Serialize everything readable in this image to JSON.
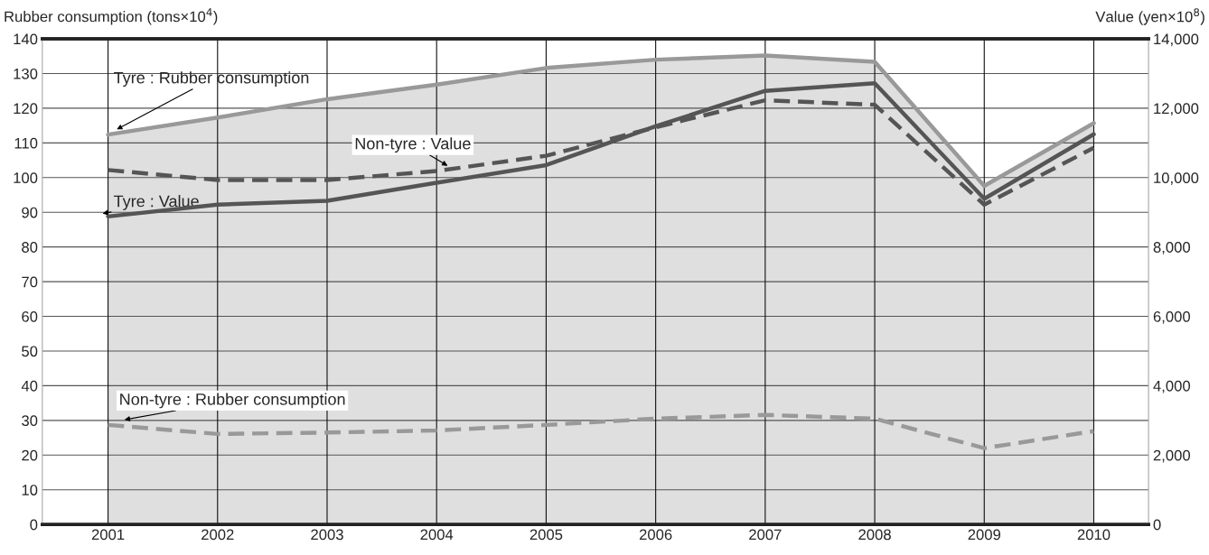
{
  "chart_data": {
    "type": "line",
    "ylabel": "Rubber consumption (tons×10$^{4}$)",
    "y2label": "Value (yen×10$^{8}$)",
    "categories": [
      "2001",
      "2002",
      "2003",
      "2004",
      "2005",
      "2006",
      "2007",
      "2008",
      "2009",
      "2010"
    ],
    "series": [
      {
        "type": "area",
        "color": "#999999",
        "line_style": "solid",
        "values": [
          112.4,
          117.3,
          122.6,
          126.8,
          131.6,
          134.0,
          135.2,
          133.4,
          97.6,
          115.7
        ]
      },
      {
        "color": "#555555",
        "line_style": "solid",
        "axis": "y2",
        "values": [
          8880,
          9220,
          9330,
          9850,
          10360,
          11480,
          12500,
          12720,
          9390,
          11250
        ]
      },
      {
        "color": "#555555",
        "line_style": "dashed",
        "axis": "y2",
        "values": [
          10220,
          9930,
          9930,
          10190,
          10630,
          11450,
          12230,
          12100,
          9220,
          10860
        ]
      },
      {
        "color": "#999999",
        "line_style": "dashed",
        "values": [
          28.7,
          26.1,
          26.5,
          27.1,
          28.7,
          30.5,
          31.6,
          30.5,
          22.0,
          26.9
        ]
      }
    ],
    "annotations": [
      {
        "text": "Tyre : Rubber consumption",
        "x": "2001",
        "y": 112.4
      },
      {
        "text": "Non-tyre : Value",
        "x": "2004",
        "y": 101.9
      },
      {
        "text": "Tyre : Value",
        "x": "2001",
        "y": 88.8
      },
      {
        "text": "Non-tyre : Rubber consumption",
        "x": "2001",
        "y": 28.7
      }
    ],
    "ylim": [
      0,
      140
    ],
    "yticks": [
      0,
      10,
      20,
      30,
      40,
      50,
      60,
      70,
      80,
      90,
      100,
      110,
      120,
      130,
      140
    ],
    "y2lim": [
      0,
      14000
    ],
    "y2ticks": [
      {
        "value": 0,
        "label": "0"
      },
      {
        "value": 2000,
        "label": "2,000"
      },
      {
        "value": 4000,
        "label": "4,000"
      },
      {
        "value": 6000,
        "label": "6,000"
      },
      {
        "value": 8000,
        "label": "8,000"
      },
      {
        "value": 10000,
        "label": "10,000"
      },
      {
        "value": 12000,
        "label": "12,000"
      },
      {
        "value": 14000,
        "label": "14,000"
      }
    ],
    "grid": true,
    "marker": "none"
  }
}
